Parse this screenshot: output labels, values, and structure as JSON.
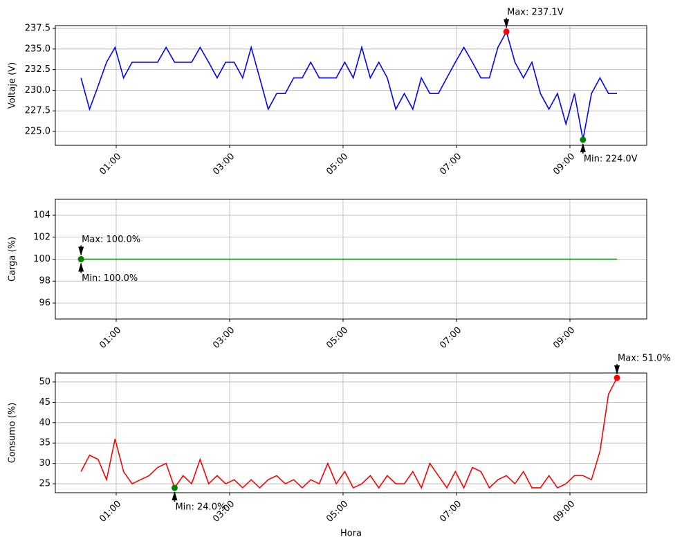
{
  "chart_data": [
    {
      "type": "line",
      "ylabel": "Voltaje (V)",
      "x": [
        0.38,
        0.53,
        0.68,
        0.83,
        0.98,
        1.13,
        1.28,
        1.43,
        1.58,
        1.73,
        1.88,
        2.03,
        2.18,
        2.33,
        2.48,
        2.63,
        2.78,
        2.93,
        3.08,
        3.23,
        3.38,
        3.53,
        3.68,
        3.83,
        3.98,
        4.13,
        4.28,
        4.43,
        4.58,
        4.73,
        4.88,
        5.03,
        5.18,
        5.33,
        5.48,
        5.63,
        5.78,
        5.93,
        6.08,
        6.23,
        6.38,
        6.53,
        6.68,
        6.83,
        6.98,
        7.13,
        7.28,
        7.43,
        7.58,
        7.73,
        7.88,
        8.03,
        8.18,
        8.33,
        8.48,
        8.63,
        8.78,
        8.93,
        9.08,
        9.23,
        9.38,
        9.53,
        9.68,
        9.83
      ],
      "series": [
        {
          "color": "#0000ff",
          "values": [
            231.5,
            227.7,
            230.5,
            233.4,
            235.2,
            231.5,
            233.4,
            233.4,
            233.4,
            233.4,
            235.2,
            233.4,
            233.4,
            233.4,
            235.2,
            233.4,
            231.5,
            233.4,
            233.4,
            231.5,
            235.2,
            231.5,
            227.7,
            229.6,
            229.6,
            231.5,
            231.5,
            233.4,
            231.5,
            231.5,
            231.5,
            233.4,
            231.5,
            235.2,
            231.5,
            233.4,
            231.5,
            227.7,
            229.6,
            227.7,
            231.5,
            229.6,
            229.6,
            231.5,
            233.4,
            235.2,
            233.4,
            231.5,
            231.5,
            235.2,
            237.1,
            233.4,
            231.5,
            233.4,
            229.6,
            227.7,
            229.6,
            225.9,
            229.6,
            224.0,
            229.6,
            231.5,
            229.6,
            229.6
          ]
        }
      ],
      "annotations": [
        {
          "text": "Max: 237.1V",
          "x": 7.88,
          "y": 237.1,
          "color": "#ff0000"
        },
        {
          "text": "Min: 224.0V",
          "x": 9.23,
          "y": 224.0,
          "color": "#008000"
        }
      ],
      "xlim": [
        -0.073,
        10.354
      ],
      "ylim": [
        223.32,
        237.84
      ],
      "xticks": [
        {
          "value": 1,
          "label": "01:00"
        },
        {
          "value": 3,
          "label": "03:00"
        },
        {
          "value": 5,
          "label": "05:00"
        },
        {
          "value": 7,
          "label": "07:00"
        },
        {
          "value": 9,
          "label": "09:00"
        }
      ],
      "yticks": [
        {
          "value": 225,
          "label": "225.0"
        },
        {
          "value": 227.5,
          "label": "227.5"
        },
        {
          "value": 230,
          "label": "230.0"
        },
        {
          "value": 232.5,
          "label": "232.5"
        },
        {
          "value": 235,
          "label": "235.0"
        },
        {
          "value": 237.5,
          "label": "237.5"
        }
      ],
      "grid": true
    },
    {
      "type": "line",
      "ylabel": "Carga (%)",
      "x": [
        0.38,
        0.53,
        0.68,
        0.83,
        0.98,
        1.13,
        1.28,
        1.43,
        1.58,
        1.73,
        1.88,
        2.03,
        2.18,
        2.33,
        2.48,
        2.63,
        2.78,
        2.93,
        3.08,
        3.23,
        3.38,
        3.53,
        3.68,
        3.83,
        3.98,
        4.13,
        4.28,
        4.43,
        4.58,
        4.73,
        4.88,
        5.03,
        5.18,
        5.33,
        5.48,
        5.63,
        5.78,
        5.93,
        6.08,
        6.23,
        6.38,
        6.53,
        6.68,
        6.83,
        6.98,
        7.13,
        7.28,
        7.43,
        7.58,
        7.73,
        7.88,
        8.03,
        8.18,
        8.33,
        8.48,
        8.63,
        8.78,
        8.93,
        9.08,
        9.23,
        9.38,
        9.53,
        9.68,
        9.83
      ],
      "series": [
        {
          "color": "#008000",
          "values": [
            100,
            100,
            100,
            100,
            100,
            100,
            100,
            100,
            100,
            100,
            100,
            100,
            100,
            100,
            100,
            100,
            100,
            100,
            100,
            100,
            100,
            100,
            100,
            100,
            100,
            100,
            100,
            100,
            100,
            100,
            100,
            100,
            100,
            100,
            100,
            100,
            100,
            100,
            100,
            100,
            100,
            100,
            100,
            100,
            100,
            100,
            100,
            100,
            100,
            100,
            100,
            100,
            100,
            100,
            100,
            100,
            100,
            100,
            100,
            100,
            100,
            100,
            100,
            100
          ]
        }
      ],
      "annotations": [
        {
          "text": "Max: 100.0%",
          "x": 0.38,
          "y": 100,
          "color": "#ff0000"
        },
        {
          "text": "Min: 100.0%",
          "x": 0.38,
          "y": 100,
          "color": "#008000"
        }
      ],
      "xlim": [
        -0.073,
        10.354
      ],
      "ylim": [
        94.55,
        105.45
      ],
      "xticks": [
        {
          "value": 1,
          "label": "01:00"
        },
        {
          "value": 3,
          "label": "03:00"
        },
        {
          "value": 5,
          "label": "05:00"
        },
        {
          "value": 7,
          "label": "07:00"
        },
        {
          "value": 9,
          "label": "09:00"
        }
      ],
      "yticks": [
        96,
        98,
        100,
        102,
        104
      ],
      "grid": true
    },
    {
      "type": "line",
      "ylabel": "Consumo (%)",
      "xlabel": "Hora",
      "x": [
        0.38,
        0.53,
        0.68,
        0.83,
        0.98,
        1.13,
        1.28,
        1.43,
        1.58,
        1.73,
        1.88,
        2.03,
        2.18,
        2.33,
        2.48,
        2.63,
        2.78,
        2.93,
        3.08,
        3.23,
        3.38,
        3.53,
        3.68,
        3.83,
        3.98,
        4.13,
        4.28,
        4.43,
        4.58,
        4.73,
        4.88,
        5.03,
        5.18,
        5.33,
        5.48,
        5.63,
        5.78,
        5.93,
        6.08,
        6.23,
        6.38,
        6.53,
        6.68,
        6.83,
        6.98,
        7.13,
        7.28,
        7.43,
        7.58,
        7.73,
        7.88,
        8.03,
        8.18,
        8.33,
        8.48,
        8.63,
        8.78,
        8.93,
        9.08,
        9.23,
        9.38,
        9.53,
        9.68,
        9.83
      ],
      "series": [
        {
          "color": "#ff0000",
          "values": [
            28,
            32,
            31,
            26,
            36,
            28,
            25,
            26,
            27,
            29,
            30,
            24,
            27,
            25,
            31,
            25,
            27,
            25,
            26,
            24,
            26,
            24,
            26,
            27,
            25,
            26,
            24,
            26,
            25,
            30,
            25,
            28,
            24,
            25,
            27,
            24,
            27,
            25,
            25,
            28,
            24,
            30,
            27,
            24,
            28,
            24,
            29,
            28,
            24,
            26,
            27,
            25,
            28,
            24,
            24,
            27,
            24,
            25,
            27,
            27,
            26,
            33,
            47,
            51
          ]
        }
      ],
      "annotations": [
        {
          "text": "Max: 51.0%",
          "x": 9.83,
          "y": 51,
          "color": "#ff0000"
        },
        {
          "text": "Min: 24.0%",
          "x": 2.03,
          "y": 24,
          "color": "#008000"
        }
      ],
      "xlim": [
        -0.073,
        10.354
      ],
      "ylim": [
        22.8,
        52.2
      ],
      "xticks": [
        {
          "value": 1,
          "label": "01:00"
        },
        {
          "value": 3,
          "label": "03:00"
        },
        {
          "value": 5,
          "label": "05:00"
        },
        {
          "value": 7,
          "label": "07:00"
        },
        {
          "value": 9,
          "label": "09:00"
        }
      ],
      "yticks": [
        25,
        30,
        35,
        40,
        45,
        50
      ],
      "grid": true
    }
  ]
}
